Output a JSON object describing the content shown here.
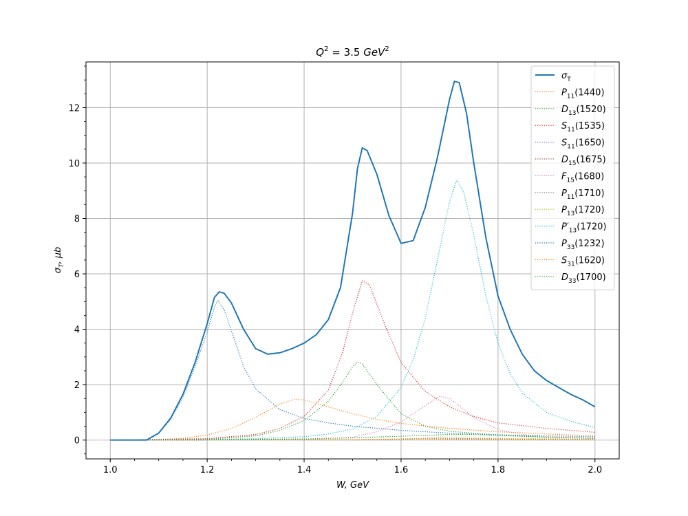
{
  "chart_data": {
    "type": "line",
    "title": "Q² = 3.5 GeV²",
    "title_parts": {
      "lhs": "Q",
      "lhs_sup": "2",
      "mid": " = 3.5 ",
      "unit": "GeV",
      "unit_sup": "2"
    },
    "xlabel": "W, GeV",
    "ylabel": "σ_T, μb",
    "xlabel_parts": {
      "text": "W, GeV"
    },
    "ylabel_parts": {
      "main": "σ",
      "sub": "T",
      "rest": ", μb"
    },
    "xlim": [
      0.95,
      2.05
    ],
    "ylim": [
      -0.68,
      13.65
    ],
    "xticks": [
      1.0,
      1.2,
      1.4,
      1.6,
      1.8,
      2.0
    ],
    "xtick_labels": [
      "1.0",
      "1.2",
      "1.4",
      "1.6",
      "1.8",
      "2.0"
    ],
    "yticks": [
      0,
      2,
      4,
      6,
      8,
      10,
      12
    ],
    "ytick_labels": [
      "0",
      "2",
      "4",
      "6",
      "8",
      "10",
      "12"
    ],
    "grid": true,
    "legend_position": "top-right",
    "series": [
      {
        "name": "σ_T",
        "main": "σ",
        "sub": "T",
        "suffix": "",
        "color": "#1f77b4",
        "style": "solid",
        "points": [
          [
            1.0,
            0
          ],
          [
            1.05,
            0
          ],
          [
            1.075,
            0
          ],
          [
            1.1,
            0.25
          ],
          [
            1.125,
            0.8
          ],
          [
            1.15,
            1.65
          ],
          [
            1.175,
            2.8
          ],
          [
            1.2,
            4.2
          ],
          [
            1.215,
            5.15
          ],
          [
            1.225,
            5.35
          ],
          [
            1.235,
            5.3
          ],
          [
            1.25,
            4.95
          ],
          [
            1.275,
            4.0
          ],
          [
            1.3,
            3.3
          ],
          [
            1.325,
            3.1
          ],
          [
            1.35,
            3.15
          ],
          [
            1.375,
            3.3
          ],
          [
            1.4,
            3.5
          ],
          [
            1.425,
            3.8
          ],
          [
            1.45,
            4.35
          ],
          [
            1.475,
            5.5
          ],
          [
            1.5,
            8.2
          ],
          [
            1.51,
            9.8
          ],
          [
            1.52,
            10.55
          ],
          [
            1.53,
            10.45
          ],
          [
            1.55,
            9.6
          ],
          [
            1.575,
            8.1
          ],
          [
            1.6,
            7.1
          ],
          [
            1.625,
            7.2
          ],
          [
            1.65,
            8.4
          ],
          [
            1.675,
            10.2
          ],
          [
            1.7,
            12.3
          ],
          [
            1.71,
            12.95
          ],
          [
            1.72,
            12.9
          ],
          [
            1.735,
            11.8
          ],
          [
            1.75,
            10.0
          ],
          [
            1.775,
            7.3
          ],
          [
            1.8,
            5.2
          ],
          [
            1.825,
            4.0
          ],
          [
            1.85,
            3.1
          ],
          [
            1.875,
            2.5
          ],
          [
            1.9,
            2.15
          ],
          [
            1.925,
            1.9
          ],
          [
            1.95,
            1.65
          ],
          [
            1.975,
            1.45
          ],
          [
            2.0,
            1.2
          ]
        ]
      },
      {
        "name": "P11(1440)",
        "main": "P",
        "sub": "11",
        "suffix": "(1440)",
        "color": "#ff7f0e",
        "style": "dotted",
        "points": [
          [
            1.0,
            0
          ],
          [
            1.1,
            0.02
          ],
          [
            1.15,
            0.06
          ],
          [
            1.2,
            0.18
          ],
          [
            1.25,
            0.42
          ],
          [
            1.3,
            0.82
          ],
          [
            1.35,
            1.3
          ],
          [
            1.38,
            1.47
          ],
          [
            1.4,
            1.45
          ],
          [
            1.45,
            1.2
          ],
          [
            1.5,
            0.95
          ],
          [
            1.55,
            0.75
          ],
          [
            1.6,
            0.6
          ],
          [
            1.7,
            0.42
          ],
          [
            1.8,
            0.3
          ],
          [
            1.9,
            0.22
          ],
          [
            2.0,
            0.15
          ]
        ]
      },
      {
        "name": "D13(1520)",
        "main": "D",
        "sub": "13",
        "suffix": "(1520)",
        "color": "#2ca02c",
        "style": "dotted",
        "points": [
          [
            1.0,
            0
          ],
          [
            1.2,
            0.03
          ],
          [
            1.3,
            0.15
          ],
          [
            1.35,
            0.35
          ],
          [
            1.4,
            0.7
          ],
          [
            1.45,
            1.4
          ],
          [
            1.48,
            2.1
          ],
          [
            1.5,
            2.65
          ],
          [
            1.51,
            2.82
          ],
          [
            1.52,
            2.75
          ],
          [
            1.55,
            2.0
          ],
          [
            1.6,
            0.95
          ],
          [
            1.65,
            0.5
          ],
          [
            1.7,
            0.32
          ],
          [
            1.8,
            0.18
          ],
          [
            1.9,
            0.11
          ],
          [
            2.0,
            0.07
          ]
        ]
      },
      {
        "name": "S11(1535)",
        "main": "S",
        "sub": "11",
        "suffix": "(1535)",
        "color": "#d62728",
        "style": "dotted",
        "points": [
          [
            1.0,
            0
          ],
          [
            1.2,
            0.05
          ],
          [
            1.3,
            0.2
          ],
          [
            1.35,
            0.42
          ],
          [
            1.4,
            0.85
          ],
          [
            1.45,
            1.8
          ],
          [
            1.48,
            3.2
          ],
          [
            1.5,
            4.6
          ],
          [
            1.52,
            5.75
          ],
          [
            1.535,
            5.6
          ],
          [
            1.55,
            4.9
          ],
          [
            1.575,
            3.8
          ],
          [
            1.6,
            2.8
          ],
          [
            1.65,
            1.75
          ],
          [
            1.7,
            1.2
          ],
          [
            1.75,
            0.85
          ],
          [
            1.8,
            0.62
          ],
          [
            1.9,
            0.42
          ],
          [
            2.0,
            0.28
          ]
        ]
      },
      {
        "name": "S11(1650)",
        "main": "S",
        "sub": "11",
        "suffix": "(1650)",
        "color": "#9467bd",
        "style": "dotted",
        "points": [
          [
            1.0,
            0
          ],
          [
            1.5,
            0.01
          ],
          [
            1.6,
            0.03
          ],
          [
            1.65,
            0.05
          ],
          [
            1.7,
            0.04
          ],
          [
            1.8,
            0.03
          ],
          [
            2.0,
            0.02
          ]
        ]
      },
      {
        "name": "D15(1675)",
        "main": "D",
        "sub": "15",
        "suffix": "(1675)",
        "color": "#8c564b",
        "style": "dotted",
        "points": [
          [
            1.0,
            0
          ],
          [
            1.5,
            0.01
          ],
          [
            1.6,
            0.04
          ],
          [
            1.675,
            0.08
          ],
          [
            1.75,
            0.06
          ],
          [
            1.85,
            0.04
          ],
          [
            2.0,
            0.02
          ]
        ]
      },
      {
        "name": "F15(1680)",
        "main": "F",
        "sub": "15",
        "suffix": "(1680)",
        "color": "#e377c2",
        "style": "dotted",
        "points": [
          [
            1.0,
            0
          ],
          [
            1.4,
            0.02
          ],
          [
            1.5,
            0.1
          ],
          [
            1.55,
            0.3
          ],
          [
            1.6,
            0.65
          ],
          [
            1.65,
            1.25
          ],
          [
            1.68,
            1.58
          ],
          [
            1.7,
            1.5
          ],
          [
            1.73,
            1.1
          ],
          [
            1.75,
            0.8
          ],
          [
            1.8,
            0.38
          ],
          [
            1.85,
            0.2
          ],
          [
            1.9,
            0.12
          ],
          [
            2.0,
            0.06
          ]
        ]
      },
      {
        "name": "P11(1710)",
        "main": "P",
        "sub": "11",
        "suffix": "(1710)",
        "color": "#7f7f7f",
        "style": "dotted",
        "points": [
          [
            1.0,
            0
          ],
          [
            1.5,
            0.01
          ],
          [
            1.6,
            0.03
          ],
          [
            1.7,
            0.06
          ],
          [
            1.8,
            0.04
          ],
          [
            2.0,
            0.02
          ]
        ]
      },
      {
        "name": "P13(1720)",
        "main": "P",
        "sub": "13",
        "suffix": "(1720)",
        "color": "#bcbd22",
        "style": "dotted",
        "points": [
          [
            1.0,
            0
          ],
          [
            1.5,
            0.01
          ],
          [
            1.6,
            0.04
          ],
          [
            1.72,
            0.08
          ],
          [
            1.8,
            0.06
          ],
          [
            2.0,
            0.03
          ]
        ]
      },
      {
        "name": "P'13(1720)",
        "main": "P′",
        "sub": "13",
        "suffix": "(1720)",
        "color": "#17becf",
        "style": "dotted",
        "points": [
          [
            1.0,
            0
          ],
          [
            1.2,
            0.02
          ],
          [
            1.3,
            0.05
          ],
          [
            1.4,
            0.12
          ],
          [
            1.45,
            0.22
          ],
          [
            1.5,
            0.4
          ],
          [
            1.55,
            0.85
          ],
          [
            1.6,
            1.9
          ],
          [
            1.625,
            2.9
          ],
          [
            1.65,
            4.4
          ],
          [
            1.675,
            6.5
          ],
          [
            1.7,
            8.6
          ],
          [
            1.715,
            9.4
          ],
          [
            1.73,
            8.9
          ],
          [
            1.75,
            7.4
          ],
          [
            1.775,
            5.2
          ],
          [
            1.8,
            3.5
          ],
          [
            1.825,
            2.4
          ],
          [
            1.85,
            1.7
          ],
          [
            1.9,
            1.0
          ],
          [
            1.95,
            0.68
          ],
          [
            2.0,
            0.45
          ]
        ]
      },
      {
        "name": "P33(1232)",
        "main": "P",
        "sub": "33",
        "suffix": "(1232)",
        "color": "#1f77b4",
        "style": "dotted",
        "points": [
          [
            1.0,
            0
          ],
          [
            1.05,
            0
          ],
          [
            1.075,
            0
          ],
          [
            1.1,
            0.24
          ],
          [
            1.125,
            0.75
          ],
          [
            1.15,
            1.55
          ],
          [
            1.175,
            2.65
          ],
          [
            1.2,
            3.9
          ],
          [
            1.215,
            4.8
          ],
          [
            1.222,
            5.05
          ],
          [
            1.235,
            4.7
          ],
          [
            1.25,
            3.95
          ],
          [
            1.275,
            2.65
          ],
          [
            1.3,
            1.85
          ],
          [
            1.35,
            1.1
          ],
          [
            1.4,
            0.78
          ],
          [
            1.45,
            0.62
          ],
          [
            1.5,
            0.5
          ],
          [
            1.6,
            0.35
          ],
          [
            1.7,
            0.25
          ],
          [
            1.8,
            0.19
          ],
          [
            1.9,
            0.15
          ],
          [
            2.0,
            0.12
          ]
        ]
      },
      {
        "name": "S31(1620)",
        "main": "S",
        "sub": "31",
        "suffix": "(1620)",
        "color": "#ff7f0e",
        "style": "dotted",
        "points": [
          [
            1.0,
            0
          ],
          [
            1.5,
            0.01
          ],
          [
            1.6,
            0.03
          ],
          [
            1.62,
            0.04
          ],
          [
            1.7,
            0.03
          ],
          [
            2.0,
            0.01
          ]
        ]
      },
      {
        "name": "D33(1700)",
        "main": "D",
        "sub": "33",
        "suffix": "(1700)",
        "color": "#2ca02c",
        "style": "dotted",
        "points": [
          [
            1.0,
            0
          ],
          [
            1.2,
            0.01
          ],
          [
            1.4,
            0.04
          ],
          [
            1.5,
            0.08
          ],
          [
            1.6,
            0.14
          ],
          [
            1.7,
            0.2
          ],
          [
            1.75,
            0.2
          ],
          [
            1.8,
            0.17
          ],
          [
            1.9,
            0.1
          ],
          [
            2.0,
            0.06
          ]
        ]
      }
    ]
  }
}
